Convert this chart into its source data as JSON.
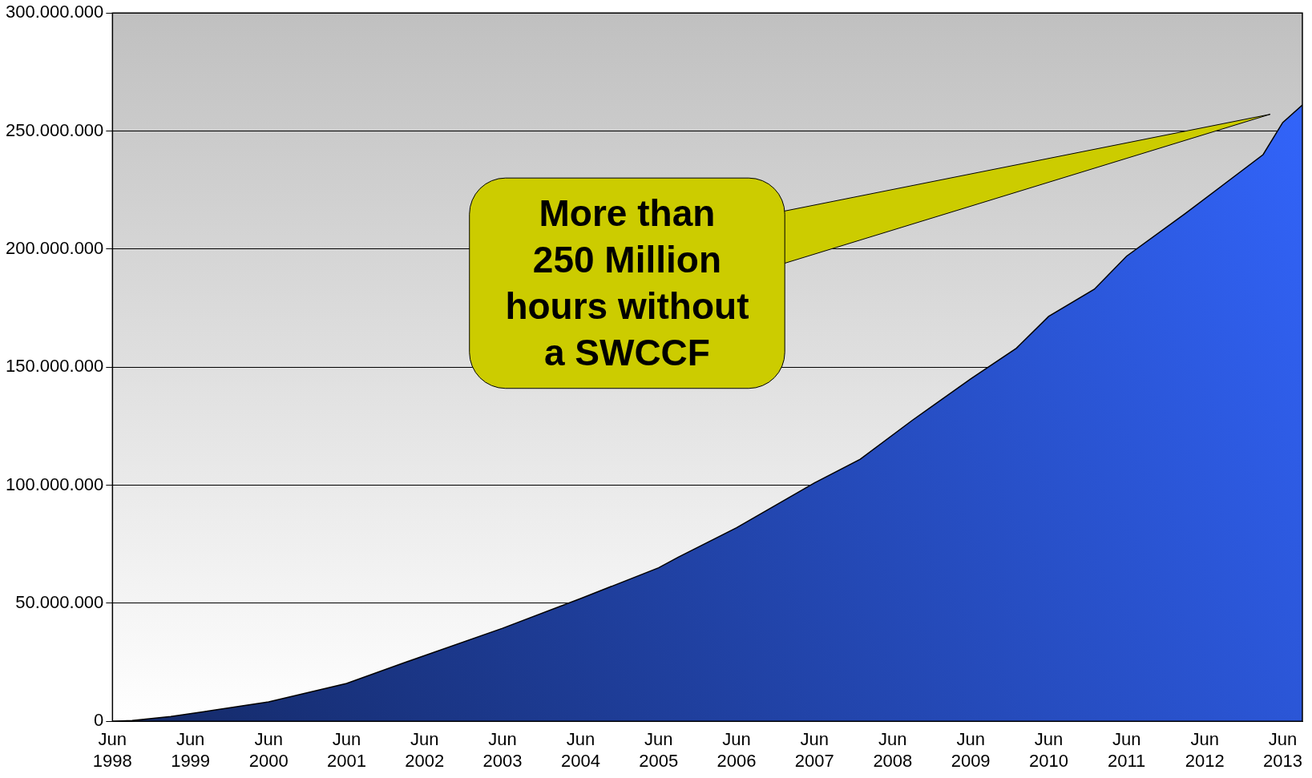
{
  "chart_data": {
    "type": "area",
    "x": [
      "1998-06",
      "1998-09",
      "1999-03",
      "2000-06",
      "2001-06",
      "2002-02",
      "2003-06",
      "2004-06",
      "2005-06",
      "2005-09",
      "2006-06",
      "2007-06",
      "2008-01",
      "2008-09",
      "2009-06",
      "2010-01",
      "2010-06",
      "2011-01",
      "2011-06",
      "2012-03",
      "2013-03",
      "2013-06",
      "2013-09"
    ],
    "series": [
      {
        "color": "#3366ff",
        "values": [
          0,
          300000,
          2000000,
          8200000,
          16000000,
          24000000,
          39400000,
          52000000,
          65000000,
          69500000,
          82000000,
          101000000,
          111000000,
          127500000,
          145000000,
          158000000,
          171500000,
          183000000,
          197000000,
          215000000,
          240000000,
          253600000,
          261000000
        ]
      }
    ],
    "xlim": [
      "1998-06",
      "2013-09"
    ],
    "xticks": [
      {
        "value": "1998-06",
        "label": "Jun 1998"
      },
      {
        "value": "1999-06",
        "label": "Jun 1999"
      },
      {
        "value": "2000-06",
        "label": "Jun 2000"
      },
      {
        "value": "2001-06",
        "label": "Jun 2001"
      },
      {
        "value": "2002-06",
        "label": "Jun 2002"
      },
      {
        "value": "2003-06",
        "label": "Jun 2003"
      },
      {
        "value": "2004-06",
        "label": "Jun 2004"
      },
      {
        "value": "2005-06",
        "label": "Jun 2005"
      },
      {
        "value": "2006-06",
        "label": "Jun 2006"
      },
      {
        "value": "2007-06",
        "label": "Jun 2007"
      },
      {
        "value": "2008-06",
        "label": "Jun 2008"
      },
      {
        "value": "2009-06",
        "label": "Jun 2009"
      },
      {
        "value": "2010-06",
        "label": "Jun 2010"
      },
      {
        "value": "2011-06",
        "label": "Jun 2011"
      },
      {
        "value": "2012-06",
        "label": "Jun 2012"
      },
      {
        "value": "2013-06",
        "label": "Jun 2013"
      }
    ],
    "ylim": [
      0,
      300000000
    ],
    "yticks": [
      {
        "value": 0,
        "label": "0"
      },
      {
        "value": 50000000,
        "label": "50.000.000"
      },
      {
        "value": 100000000,
        "label": "100.000.000"
      },
      {
        "value": 150000000,
        "label": "150.000.000"
      },
      {
        "value": 200000000,
        "label": "200.000.000"
      },
      {
        "value": 250000000,
        "label": "250.000.000"
      },
      {
        "value": 300000000,
        "label": "300.000.000"
      }
    ],
    "grid": "y",
    "annotations": [
      "More than\n250 Million\nhours without\na SWCCF"
    ]
  }
}
